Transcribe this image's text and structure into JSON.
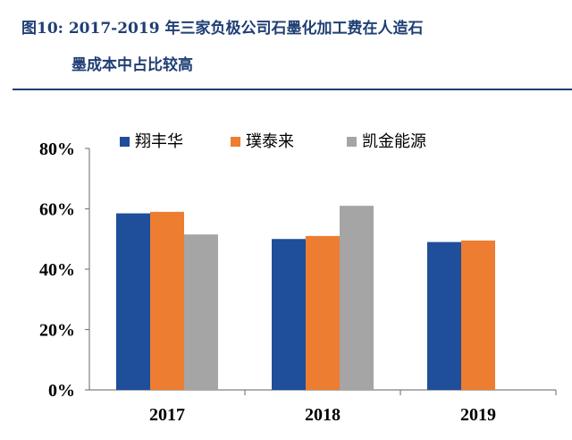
{
  "title": {
    "line1": "图10: 2017-2019 年三家负极公司石墨化加工费在人造石",
    "line2": "墨成本中占比较高"
  },
  "colors": {
    "title": "#1f3e74",
    "series": [
      "#1f4e9a",
      "#ed7d31",
      "#a5a5a5"
    ]
  },
  "chart_data": {
    "type": "bar",
    "categories": [
      "2017",
      "2018",
      "2019"
    ],
    "series": [
      {
        "name": "翔丰华",
        "values": [
          58.5,
          50,
          49
        ]
      },
      {
        "name": "璞泰来",
        "values": [
          59,
          51,
          49.5
        ]
      },
      {
        "name": "凯金能源",
        "values": [
          51.5,
          61,
          null
        ]
      }
    ],
    "ylim": [
      0,
      80
    ],
    "yticks": [
      "0%",
      "20%",
      "40%",
      "60%",
      "80%"
    ],
    "legend": "top",
    "grid": false
  }
}
